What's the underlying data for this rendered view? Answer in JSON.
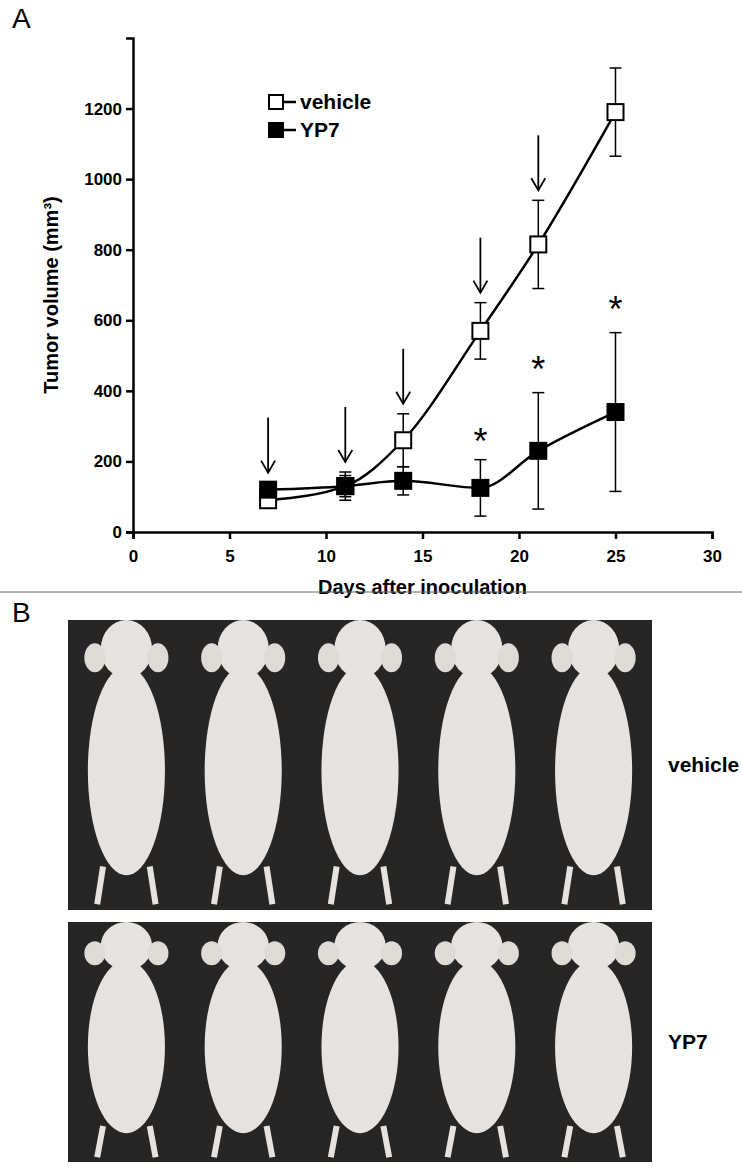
{
  "chart_data": {
    "type": "line",
    "title": "A",
    "x_label": "Days after inoculation",
    "y_label": "Tumor volume (mm³)",
    "x": [
      7,
      11,
      14,
      18,
      21,
      25
    ],
    "series": [
      {
        "name": "vehicle",
        "color": "#000000",
        "marker": "square-open",
        "values": [
          90,
          130,
          260,
          570,
          815,
          1190
        ],
        "errors": [
          15,
          30,
          75,
          80,
          125,
          125
        ]
      },
      {
        "name": "YP7",
        "color": "#000000",
        "marker": "square",
        "values": [
          120,
          130,
          145,
          125,
          230,
          340
        ],
        "errors": [
          20,
          40,
          40,
          80,
          165,
          225
        ]
      }
    ],
    "xlim": [
      0,
      30
    ],
    "xticks": [
      0,
      5,
      10,
      15,
      20,
      25,
      30
    ],
    "ylim": [
      0,
      1400
    ],
    "yticks": [
      0,
      200,
      400,
      600,
      800,
      1000,
      1200
    ],
    "grid": false,
    "legend": "upper left",
    "treatment_days": [
      7,
      11,
      14,
      18,
      21
    ],
    "annotations": [
      {
        "text": "*",
        "x": 18,
        "y": 265
      },
      {
        "text": "*",
        "x": 21,
        "y": 470
      },
      {
        "text": "*",
        "x": 25,
        "y": 640
      }
    ]
  },
  "panel_b": {
    "label": "B",
    "photos": [
      {
        "label": "vehicle",
        "mice": 5
      },
      {
        "label": "YP7",
        "mice": 5
      }
    ]
  }
}
